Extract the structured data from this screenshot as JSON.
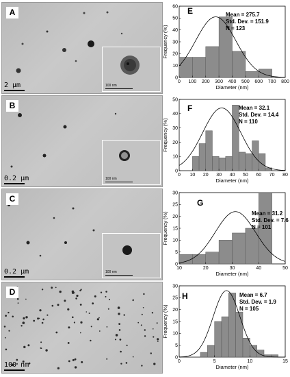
{
  "micrographs": [
    {
      "panel": "A",
      "scale_label": "2 µm",
      "inset_scale_label": "100 nm"
    },
    {
      "panel": "B",
      "scale_label": "0.2 µm",
      "inset_scale_label": "100 nm"
    },
    {
      "panel": "C",
      "scale_label": "0.2 µm",
      "inset_scale_label": "100 nm"
    },
    {
      "panel": "D",
      "scale_label": "100 nm"
    }
  ],
  "chart_data": [
    {
      "type": "bar",
      "panel": "E",
      "bin_edges": [
        0,
        100,
        200,
        300,
        400,
        500,
        600,
        700
      ],
      "values": [
        17,
        17,
        26,
        51,
        22,
        5,
        7,
        2
      ],
      "xlim": [
        0,
        800
      ],
      "ylim": [
        0,
        60
      ],
      "xticks": [
        0,
        100,
        200,
        300,
        400,
        500,
        600,
        700,
        800
      ],
      "yticks": [
        0,
        10,
        20,
        30,
        40,
        50,
        60
      ],
      "xlabel": "Diameter (nm)",
      "ylabel": "Frequency (%)",
      "fit": {
        "mean": 275.7,
        "sd": 151.9,
        "peak": 51
      },
      "stats": {
        "mean": "Mean = 275.7",
        "sd": "Std. Dev. = 151.9",
        "n": "N = 123"
      }
    },
    {
      "type": "bar",
      "panel": "F",
      "bin_edges": [
        0,
        10,
        15,
        20,
        25,
        30,
        35,
        40,
        45,
        50,
        55,
        60,
        65,
        70
      ],
      "values": [
        0,
        10,
        19,
        28,
        10,
        9,
        10,
        46,
        13,
        12,
        21,
        12,
        2
      ],
      "xlim": [
        0,
        80
      ],
      "ylim": [
        0,
        50
      ],
      "xticks": [
        0,
        10,
        20,
        30,
        40,
        50,
        60,
        70,
        80
      ],
      "yticks": [
        0,
        10,
        20,
        30,
        40,
        50
      ],
      "xlabel": "Diameter (nm)",
      "ylabel": "Frequency (%)",
      "fit": {
        "mean": 32.1,
        "sd": 14.4,
        "peak": 44
      },
      "stats": {
        "mean": "Mean = 32.1",
        "sd": "Std. Dev. = 14.4",
        "n": "N = 110"
      }
    },
    {
      "type": "bar",
      "panel": "G",
      "bin_edges": [
        10,
        15,
        20,
        25,
        30,
        35,
        40,
        45
      ],
      "values": [
        4,
        4,
        5,
        10,
        13,
        15,
        30,
        4
      ],
      "xlim": [
        10,
        50
      ],
      "ylim": [
        0,
        30
      ],
      "xticks": [
        10,
        20,
        30,
        40,
        50
      ],
      "yticks": [
        0,
        5,
        10,
        15,
        20,
        25,
        30
      ],
      "xlabel": "Diameter (nm)",
      "ylabel": "Frequency (%)",
      "fit": {
        "mean": 31.2,
        "sd": 7.6,
        "peak": 22
      },
      "stats": {
        "mean": "Mean = 31.2",
        "sd": "Std. Dev. = 7.6",
        "n": "N = 101"
      }
    },
    {
      "type": "bar",
      "panel": "H",
      "bin_edges": [
        3,
        4,
        5,
        6,
        7,
        8,
        9,
        10,
        11,
        12,
        13,
        14
      ],
      "values": [
        2,
        5,
        15,
        17,
        27,
        19,
        8,
        5,
        3,
        1,
        1
      ],
      "xlim": [
        0,
        15
      ],
      "ylim": [
        0,
        30
      ],
      "xticks": [
        0,
        5,
        10,
        15
      ],
      "yticks": [
        0,
        5,
        10,
        15,
        20,
        25,
        30
      ],
      "xlabel": "Diameter (nm)",
      "ylabel": "Frequency (%)",
      "fit": {
        "mean": 6.7,
        "sd": 1.9,
        "peak": 28
      },
      "stats": {
        "mean": "Mean = 6.7",
        "sd": "Std. Dev. = 1.9",
        "n": "N = 105"
      }
    }
  ],
  "colors": {
    "bar": "#8c8c8c",
    "bar_edge": "#595959",
    "fit_line": "#000000"
  }
}
